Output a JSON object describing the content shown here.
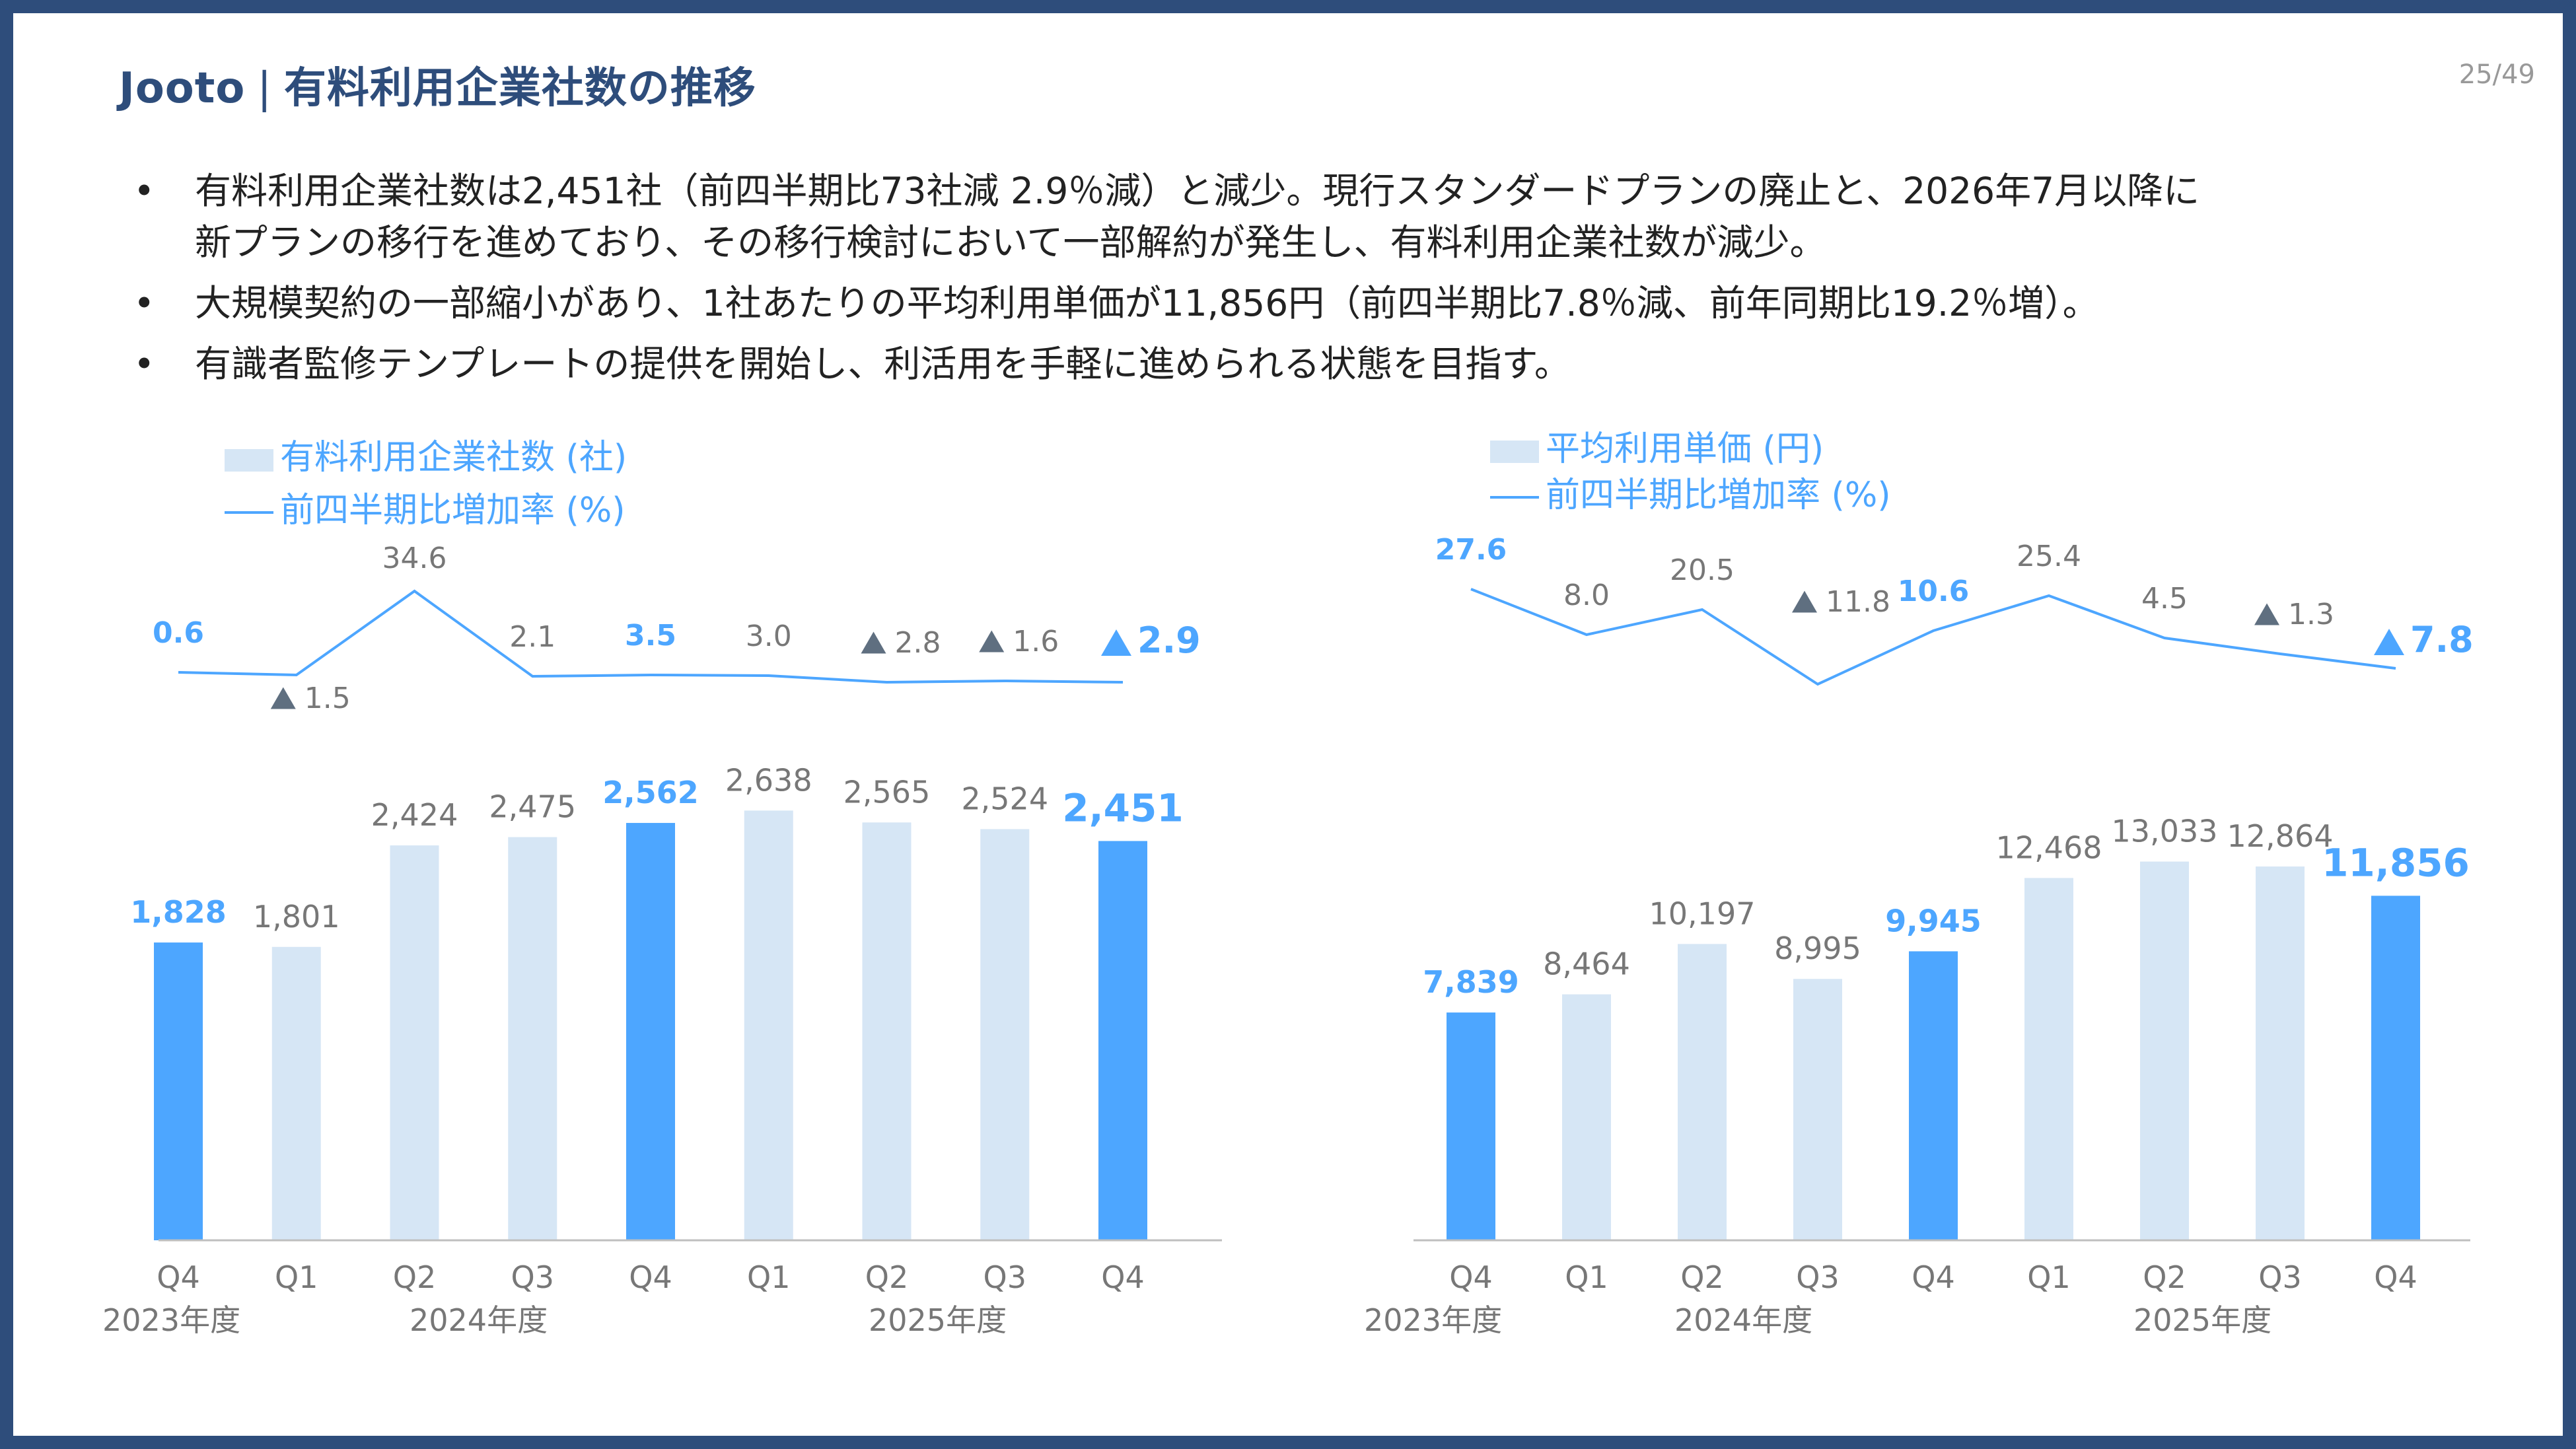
{
  "header": {
    "brand": "Jooto",
    "separator": "|",
    "title": "有料利用企業社数の推移",
    "page_number": "25/49"
  },
  "bullets": [
    {
      "marker": "•",
      "lines": [
        "有料利用企業社数は2,451社（前四半期比73社減 2.9％減）と減少。現行スタンダードプランの廃止と、2026年7月以降に",
        "新プランの移行を進めており、その移行検討において一部解約が発生し、有料利用企業社数が減少。"
      ]
    },
    {
      "marker": "•",
      "lines": [
        "大規模契約の一部縮小があり、1社あたりの平均利用単価が11,856円（前四半期比7.8％減、前年同期比19.2％増）。"
      ]
    },
    {
      "marker": "•",
      "lines": [
        "有識者監修テンプレートの提供を開始し、利活用を手軽に進められる状態を目指す。"
      ]
    }
  ],
  "colors": {
    "frame": "#2e4d7b",
    "highlight_bar": "#4da6ff",
    "normal_bar": "#d6e6f5",
    "line": "#4da6ff",
    "label_blue": "#4da6ff",
    "label_gray": "#777777",
    "triangle_gray": "#5f6f80",
    "axis": "#bfbfbf"
  },
  "chart_data": [
    {
      "type": "bar",
      "legend": {
        "bar_label": "有料利用企業社数 (社)",
        "line_label": "前四半期比増加率 (%)"
      },
      "categories": [
        "Q4",
        "Q1",
        "Q2",
        "Q3",
        "Q4",
        "Q1",
        "Q2",
        "Q3",
        "Q4"
      ],
      "fiscal_years": [
        {
          "label": "2023年度",
          "start": 0
        },
        {
          "label": "2024年度",
          "start": 1
        },
        {
          "label": "2025年度",
          "start": 5
        }
      ],
      "series": [
        {
          "name": "有料利用企業社数 (社)",
          "type": "bar",
          "values": [
            1828,
            1801,
            2424,
            2475,
            2562,
            2638,
            2565,
            2524,
            2451
          ],
          "labels": [
            "1,828",
            "1,801",
            "2,424",
            "2,475",
            "2,562",
            "2,638",
            "2,565",
            "2,524",
            "2,451"
          ],
          "highlight": [
            true,
            false,
            false,
            false,
            true,
            false,
            false,
            false,
            true
          ]
        },
        {
          "name": "前四半期比増加率 (%)",
          "type": "line",
          "values": [
            0.6,
            -1.5,
            34.6,
            2.1,
            3.5,
            3.0,
            -2.8,
            -1.6,
            -2.9
          ],
          "labels": [
            "0.6",
            "1.5",
            "34.6",
            "2.1",
            "3.5",
            "3.0",
            "2.8",
            "1.6",
            "2.9"
          ],
          "negative_marker": "▲"
        }
      ],
      "ylim": [
        0,
        3000
      ]
    },
    {
      "type": "bar",
      "legend": {
        "bar_label": "平均利用単価 (円)",
        "line_label": "前四半期比増加率 (%)"
      },
      "categories": [
        "Q4",
        "Q1",
        "Q2",
        "Q3",
        "Q4",
        "Q1",
        "Q2",
        "Q3",
        "Q4"
      ],
      "fiscal_years": [
        {
          "label": "2023年度",
          "start": 0
        },
        {
          "label": "2024年度",
          "start": 1
        },
        {
          "label": "2025年度",
          "start": 5
        }
      ],
      "series": [
        {
          "name": "平均利用単価 (円)",
          "type": "bar",
          "values": [
            7839,
            8464,
            10197,
            8995,
            9945,
            12468,
            13033,
            12864,
            11856
          ],
          "labels": [
            "7,839",
            "8,464",
            "10,197",
            "8,995",
            "9,945",
            "12,468",
            "13,033",
            "12,864",
            "11,856"
          ],
          "highlight": [
            true,
            false,
            false,
            false,
            true,
            false,
            false,
            false,
            true
          ]
        },
        {
          "name": "前四半期比増加率 (%)",
          "type": "line",
          "values": [
            27.6,
            8.0,
            20.5,
            -11.8,
            10.6,
            25.4,
            4.5,
            -1.3,
            -7.8
          ],
          "labels": [
            "27.6",
            "8.0",
            "20.5",
            "11.8",
            "10.6",
            "25.4",
            "4.5",
            "1.3",
            "7.8"
          ],
          "negative_marker": "▲"
        }
      ],
      "ylim": [
        0,
        15000
      ]
    }
  ]
}
